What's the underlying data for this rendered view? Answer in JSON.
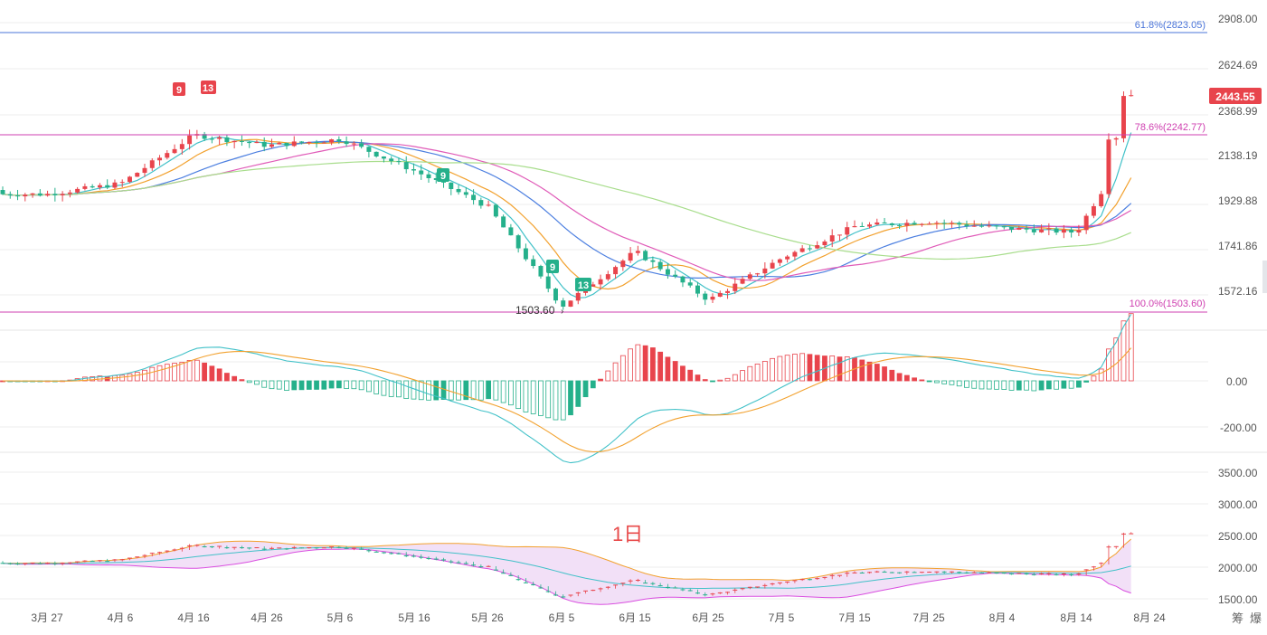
{
  "colors": {
    "up": "#e8444c",
    "down": "#25b08b",
    "bg": "#ffffff",
    "grid": "#eeeeee",
    "fib_top": "#4a74d9",
    "fib_mid": "#cf3fb0",
    "fib_low": "#cf3fb0",
    "price_tag": "#e8444c",
    "ma_yellow": "#f2a12e",
    "ma_cyan": "#41c1c8",
    "ma_pink": "#e05bb8",
    "ma_green": "#a8dd8c",
    "ma_blue": "#4c7fe0",
    "macd_dif": "#41c1c8",
    "macd_dea": "#f2a12e",
    "boll_fill": "#f2e0f7",
    "boll_upper": "#f2a12e",
    "boll_lower": "#d94ee0",
    "boll_mid": "#41c1c8"
  },
  "price_axis": {
    "labels": [
      "2908.00",
      "2624.69",
      "2368.99",
      "2138.19",
      "1929.88",
      "1741.86",
      "1572.16"
    ]
  },
  "macd_axis": {
    "labels": [
      "0.00",
      "-200.00"
    ]
  },
  "vol_axis": {
    "labels": [
      "3500.00",
      "3000.00",
      "2500.00",
      "2000.00",
      "1500.00"
    ]
  },
  "x_axis": {
    "labels": [
      "3月 27",
      "4月 6",
      "4月 16",
      "4月 26",
      "5月 6",
      "5月 16",
      "5月 26",
      "6月 5",
      "6月 15",
      "6月 25",
      "7月 5",
      "7月 15",
      "7月 25",
      "8月 4",
      "8月 14",
      "8月 24"
    ]
  },
  "fib": {
    "top_label": "61.8%(2823.05)",
    "mid_label": "78.6%(2242.77)",
    "low_label": "100.0%(1503.60)"
  },
  "current_price": "2443.55",
  "low_marker": "1503.60",
  "interval_label": "1日",
  "corner_labels": [
    "筹",
    "爆"
  ],
  "td_marks": [
    {
      "text": "9",
      "type": "up"
    },
    {
      "text": "13",
      "type": "up"
    },
    {
      "text": "9",
      "type": "down"
    },
    {
      "text": "9",
      "type": "down"
    },
    {
      "text": "13",
      "type": "down"
    }
  ],
  "chart_data": {
    "type": "candlestick",
    "title": "",
    "dates": [
      "3月27",
      "4月6",
      "4月16",
      "4月26",
      "5月6",
      "5月16",
      "5月26",
      "6月5",
      "6月15",
      "6月25",
      "7月5",
      "7月15",
      "7月25",
      "8月4",
      "8月14",
      "8月24"
    ],
    "ylim": [
      1503.6,
      2908
    ],
    "close_path": [
      {
        "date": "3月27",
        "value": 2060
      },
      {
        "date": "4月6",
        "value": 2110
      },
      {
        "date": "4月16",
        "value": 2340
      },
      {
        "date": "4月26",
        "value": 2290
      },
      {
        "date": "5月6",
        "value": 2320
      },
      {
        "date": "5月16",
        "value": 2170
      },
      {
        "date": "5月26",
        "value": 2000
      },
      {
        "date": "6月5",
        "value": 1530
      },
      {
        "date": "6月15",
        "value": 1790
      },
      {
        "date": "6月25",
        "value": 1560
      },
      {
        "date": "7月5",
        "value": 1760
      },
      {
        "date": "7月15",
        "value": 1910
      },
      {
        "date": "7月25",
        "value": 1930
      },
      {
        "date": "8月4",
        "value": 1900
      },
      {
        "date": "8月14",
        "value": 1880
      },
      {
        "date": "8月24",
        "value": 2443.55
      }
    ],
    "fib_levels": [
      {
        "pct": "61.8%",
        "value": 2823.05
      },
      {
        "pct": "78.6%",
        "value": 2242.77
      },
      {
        "pct": "100.0%",
        "value": 1503.6
      }
    ],
    "last_price": 2443.55,
    "macd_range": [
      -300,
      100
    ],
    "volume_range": [
      1500,
      3500
    ]
  }
}
